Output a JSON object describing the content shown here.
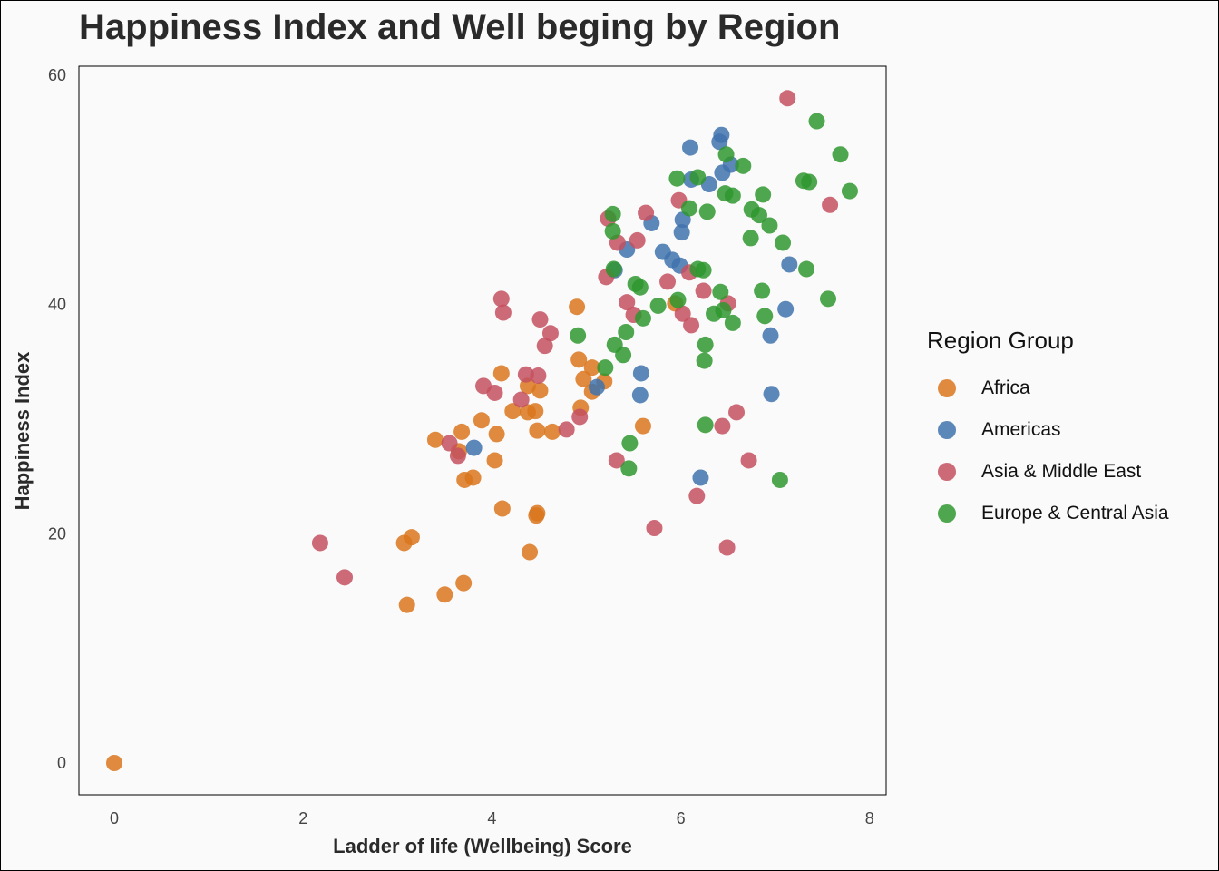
{
  "chart_data": {
    "type": "scatter",
    "title": "Happiness Index and Well beging by Region",
    "xlabel": "Ladder of life (Wellbeing) Score",
    "ylabel": "Happiness Index",
    "xlim": [
      -0.47,
      8.2
    ],
    "ylim": [
      -2.7,
      61
    ],
    "xticks": [
      0,
      2,
      4,
      6,
      8
    ],
    "yticks": [
      0,
      20,
      40,
      60
    ],
    "legend_title": "Region Group",
    "legend_position": "right",
    "series": [
      {
        "name": "Africa",
        "color": "#d9761d",
        "points": [
          [
            0,
            0
          ],
          [
            4.9,
            39.8
          ],
          [
            4.92,
            35.2
          ],
          [
            4.1,
            34.0
          ],
          [
            4.38,
            32.9
          ],
          [
            4.51,
            32.5
          ],
          [
            5.06,
            34.5
          ],
          [
            4.97,
            33.5
          ],
          [
            5.19,
            33.3
          ],
          [
            5.06,
            32.4
          ],
          [
            4.94,
            31.0
          ],
          [
            4.22,
            30.7
          ],
          [
            4.38,
            30.6
          ],
          [
            4.46,
            30.7
          ],
          [
            3.89,
            29.9
          ],
          [
            3.68,
            28.9
          ],
          [
            4.05,
            28.7
          ],
          [
            4.48,
            29.0
          ],
          [
            4.64,
            28.9
          ],
          [
            5.6,
            29.4
          ],
          [
            3.4,
            28.2
          ],
          [
            3.65,
            27.2
          ],
          [
            4.03,
            26.4
          ],
          [
            3.8,
            24.9
          ],
          [
            3.71,
            24.7
          ],
          [
            4.11,
            22.2
          ],
          [
            4.48,
            21.8
          ],
          [
            4.47,
            21.6
          ],
          [
            3.15,
            19.7
          ],
          [
            3.07,
            19.2
          ],
          [
            4.4,
            18.4
          ],
          [
            3.7,
            15.7
          ],
          [
            3.5,
            14.7
          ],
          [
            3.1,
            13.8
          ],
          [
            5.94,
            40.1
          ]
        ]
      },
      {
        "name": "Americas",
        "color": "#3f72ad",
        "points": [
          [
            6.43,
            54.8
          ],
          [
            6.41,
            54.2
          ],
          [
            6.1,
            53.7
          ],
          [
            6.53,
            52.2
          ],
          [
            6.44,
            51.5
          ],
          [
            6.11,
            50.9
          ],
          [
            6.3,
            50.5
          ],
          [
            5.69,
            47.1
          ],
          [
            6.02,
            47.4
          ],
          [
            6.01,
            46.3
          ],
          [
            5.43,
            44.8
          ],
          [
            5.81,
            44.6
          ],
          [
            5.91,
            43.9
          ],
          [
            5.99,
            43.4
          ],
          [
            7.15,
            43.5
          ],
          [
            5.3,
            43.0
          ],
          [
            7.11,
            39.6
          ],
          [
            6.95,
            37.3
          ],
          [
            5.58,
            34.0
          ],
          [
            5.57,
            32.1
          ],
          [
            6.96,
            32.2
          ],
          [
            5.11,
            32.8
          ],
          [
            3.81,
            27.5
          ],
          [
            6.21,
            24.9
          ]
        ]
      },
      {
        "name": "Asia & Middle East",
        "color": "#c4505f",
        "points": [
          [
            7.13,
            58.0
          ],
          [
            7.58,
            48.7
          ],
          [
            5.98,
            49.1
          ],
          [
            5.63,
            48.0
          ],
          [
            5.23,
            47.5
          ],
          [
            5.33,
            45.4
          ],
          [
            5.54,
            45.6
          ],
          [
            5.21,
            42.4
          ],
          [
            5.86,
            42.0
          ],
          [
            6.09,
            42.8
          ],
          [
            6.24,
            41.2
          ],
          [
            4.1,
            40.5
          ],
          [
            4.12,
            39.3
          ],
          [
            5.43,
            40.2
          ],
          [
            5.5,
            39.1
          ],
          [
            6.02,
            39.2
          ],
          [
            6.11,
            38.2
          ],
          [
            6.5,
            40.1
          ],
          [
            4.51,
            38.7
          ],
          [
            4.62,
            37.5
          ],
          [
            4.56,
            36.4
          ],
          [
            4.36,
            33.9
          ],
          [
            4.49,
            33.8
          ],
          [
            3.91,
            32.9
          ],
          [
            4.03,
            32.3
          ],
          [
            4.31,
            31.7
          ],
          [
            4.93,
            30.2
          ],
          [
            4.79,
            29.1
          ],
          [
            3.55,
            27.9
          ],
          [
            3.64,
            26.8
          ],
          [
            5.32,
            26.4
          ],
          [
            6.59,
            30.6
          ],
          [
            6.44,
            29.4
          ],
          [
            6.72,
            26.4
          ],
          [
            6.17,
            23.3
          ],
          [
            5.72,
            20.5
          ],
          [
            6.49,
            18.8
          ],
          [
            2.18,
            19.2
          ],
          [
            2.44,
            16.2
          ]
        ]
      },
      {
        "name": "Europe & Central Asia",
        "color": "#2f962f",
        "points": [
          [
            7.44,
            56.0
          ],
          [
            7.69,
            53.1
          ],
          [
            6.48,
            53.1
          ],
          [
            6.66,
            52.1
          ],
          [
            6.18,
            51.1
          ],
          [
            5.96,
            51.0
          ],
          [
            7.3,
            50.8
          ],
          [
            7.36,
            50.7
          ],
          [
            7.79,
            49.9
          ],
          [
            6.47,
            49.7
          ],
          [
            6.55,
            49.5
          ],
          [
            6.87,
            49.6
          ],
          [
            6.09,
            48.4
          ],
          [
            5.28,
            47.9
          ],
          [
            6.28,
            48.1
          ],
          [
            6.75,
            48.3
          ],
          [
            6.83,
            47.8
          ],
          [
            6.94,
            46.9
          ],
          [
            5.28,
            46.4
          ],
          [
            6.74,
            45.8
          ],
          [
            7.08,
            45.4
          ],
          [
            6.18,
            43.1
          ],
          [
            6.24,
            43.0
          ],
          [
            7.33,
            43.1
          ],
          [
            5.52,
            41.8
          ],
          [
            5.57,
            41.5
          ],
          [
            6.42,
            41.1
          ],
          [
            6.86,
            41.2
          ],
          [
            7.56,
            40.5
          ],
          [
            5.97,
            40.4
          ],
          [
            5.76,
            39.9
          ],
          [
            6.35,
            39.2
          ],
          [
            6.45,
            39.5
          ],
          [
            6.89,
            39.0
          ],
          [
            5.6,
            38.8
          ],
          [
            6.55,
            38.4
          ],
          [
            4.91,
            37.3
          ],
          [
            5.42,
            37.6
          ],
          [
            5.3,
            36.5
          ],
          [
            6.26,
            36.5
          ],
          [
            5.39,
            35.6
          ],
          [
            6.25,
            35.1
          ],
          [
            5.2,
            34.5
          ],
          [
            6.26,
            29.5
          ],
          [
            5.46,
            27.9
          ],
          [
            5.45,
            25.7
          ],
          [
            7.05,
            24.7
          ],
          [
            5.29,
            43.1
          ]
        ]
      }
    ]
  }
}
